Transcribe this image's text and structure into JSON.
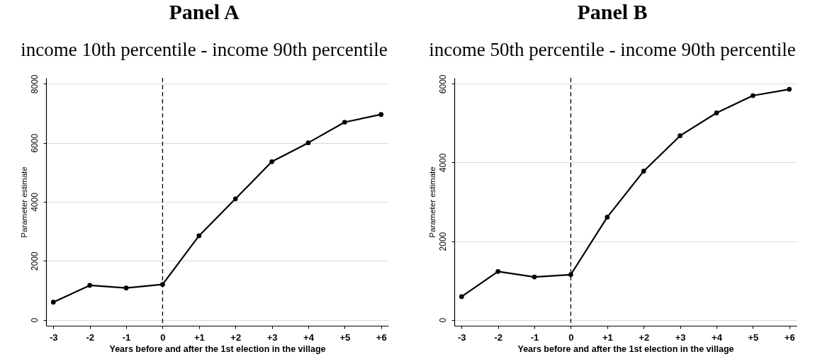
{
  "chart_data": [
    {
      "type": "line",
      "title": "Panel A",
      "subtitle": "income 10th percentile - income 90th percentile",
      "xlabel": "Years before and after the 1st election in the village",
      "ylabel": "Parameter estimate",
      "x": [
        -3,
        -2,
        -1,
        0,
        1,
        2,
        3,
        4,
        5,
        6
      ],
      "series": [
        {
          "color": "#000000",
          "values": [
            600,
            1170,
            1080,
            1200,
            2850,
            4100,
            5360,
            6000,
            6700,
            6960
          ]
        }
      ],
      "xlim": [
        -3.2,
        6.2
      ],
      "ylim": [
        -200,
        8200
      ],
      "xticks": [
        -3,
        -2,
        -1,
        0,
        {
          "value": 1,
          "label": "+1"
        },
        {
          "value": 2,
          "label": "+2"
        },
        {
          "value": 3,
          "label": "+3"
        },
        {
          "value": 4,
          "label": "+4"
        },
        {
          "value": 5,
          "label": "+5"
        },
        {
          "value": 6,
          "label": "+6"
        }
      ],
      "yticks": [
        0,
        2000,
        4000,
        6000,
        8000
      ],
      "ref_lines": [
        {
          "axis": "x",
          "value": 0,
          "color": "#000000",
          "line_style": "dashed"
        }
      ],
      "grid": "y",
      "marker": "circle",
      "line_style": "solid"
    },
    {
      "type": "line",
      "title": "Panel B",
      "subtitle": "income 50th percentile - income 90th percentile",
      "xlabel": "Years before and after the 1st election in the village",
      "ylabel": "Parameter estimate",
      "x": [
        -3,
        -2,
        -1,
        0,
        1,
        2,
        3,
        4,
        5,
        6
      ],
      "series": [
        {
          "color": "#000000",
          "values": [
            590,
            1230,
            1090,
            1150,
            2610,
            3780,
            4680,
            5260,
            5700,
            5860
          ]
        }
      ],
      "xlim": [
        -3.2,
        6.2
      ],
      "ylim": [
        -150,
        6150
      ],
      "xticks": [
        -3,
        -2,
        -1,
        0,
        {
          "value": 1,
          "label": "+1"
        },
        {
          "value": 2,
          "label": "+2"
        },
        {
          "value": 3,
          "label": "+3"
        },
        {
          "value": 4,
          "label": "+4"
        },
        {
          "value": 5,
          "label": "+5"
        },
        {
          "value": 6,
          "label": "+6"
        }
      ],
      "yticks": [
        0,
        2000,
        4000,
        6000
      ],
      "ref_lines": [
        {
          "axis": "x",
          "value": 0,
          "color": "#000000",
          "line_style": "dashed"
        }
      ],
      "grid": "y",
      "marker": "circle",
      "line_style": "solid"
    }
  ]
}
